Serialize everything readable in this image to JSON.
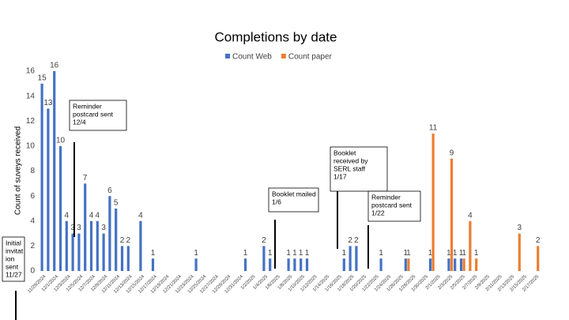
{
  "chart_data": {
    "type": "bar",
    "title": "Completions by date",
    "y_label": "Count of suveys received",
    "categories": [
      "11/29/2024",
      null,
      "12/1/2024",
      null,
      "12/3/2024",
      null,
      "12/5/2024",
      null,
      "12/7/2024",
      null,
      "12/9/2024",
      null,
      "12/11/2024",
      null,
      "12/13/2024",
      null,
      "12/15/2024",
      null,
      "12/17/2024",
      null,
      "12/19/2024",
      null,
      "12/21/2024",
      null,
      "12/23/2024",
      null,
      "12/25/2024",
      null,
      "12/27/2024",
      null,
      "12/29/2024",
      null,
      "12/31/2024",
      null,
      "1/2/2025",
      null,
      "1/4/2025",
      null,
      "1/6/2025",
      null,
      "1/8/2025",
      null,
      "1/10/2025",
      null,
      "1/12/2025",
      null,
      "1/14/2025",
      null,
      "1/16/2025",
      null,
      "1/18/2025",
      null,
      "1/20/2025",
      null,
      "1/22/2025",
      null,
      "1/24/2025",
      null,
      "1/26/2025",
      null,
      "1/28/2025",
      null,
      "1/30/2025",
      null,
      "2/1/2025",
      null,
      "2/3/2025",
      null,
      "2/5/2025",
      null,
      "2/7/2025",
      null,
      "2/9/2025",
      null,
      "2/11/2025",
      null,
      "2/13/2025",
      null,
      "2/15/2025",
      null,
      "2/17/2025"
    ],
    "series": [
      {
        "name": "Count Web",
        "color": "#4472c4",
        "values": [
          15,
          13,
          16,
          10,
          4,
          3,
          3,
          7,
          4,
          4,
          3,
          6,
          5,
          2,
          2,
          0,
          4,
          0,
          1,
          0,
          0,
          0,
          0,
          0,
          0,
          1,
          0,
          0,
          0,
          0,
          0,
          0,
          0,
          1,
          0,
          0,
          2,
          1,
          0,
          0,
          1,
          1,
          1,
          1,
          0,
          0,
          0,
          0,
          0,
          1,
          2,
          2,
          0,
          0,
          0,
          1,
          0,
          0,
          0,
          1,
          0,
          0,
          0,
          1,
          0,
          0,
          1,
          1,
          1,
          0,
          0,
          0,
          0,
          0,
          0,
          0,
          0,
          0,
          0,
          0,
          0
        ]
      },
      {
        "name": "Count paper",
        "color": "#ed7d31",
        "values": [
          0,
          0,
          0,
          0,
          0,
          0,
          0,
          0,
          0,
          0,
          0,
          0,
          0,
          0,
          0,
          0,
          0,
          0,
          0,
          0,
          0,
          0,
          0,
          0,
          0,
          0,
          0,
          0,
          0,
          0,
          0,
          0,
          0,
          0,
          0,
          0,
          0,
          0,
          0,
          0,
          0,
          0,
          0,
          0,
          0,
          0,
          0,
          0,
          0,
          0,
          0,
          0,
          0,
          0,
          0,
          0,
          0,
          0,
          0,
          1,
          0,
          0,
          0,
          11,
          0,
          0,
          9,
          0,
          1,
          4,
          1,
          0,
          0,
          0,
          0,
          0,
          0,
          3,
          0,
          0,
          2
        ]
      }
    ],
    "ylim": [
      0,
      16
    ],
    "yticks": [
      0,
      2,
      4,
      6,
      8,
      10,
      12,
      14,
      16
    ],
    "legend": "top",
    "annotations": [
      {
        "lines": [
          "Initial",
          "invitat",
          "ion",
          "sent",
          "11/27"
        ]
      },
      {
        "lines": [
          "Reminder",
          "postcard sent",
          "12/4"
        ]
      },
      {
        "lines": [
          "Booklet mailed",
          "1/6"
        ]
      },
      {
        "lines": [
          "Booklet",
          "received by",
          "SERL staff",
          "1/17"
        ]
      },
      {
        "lines": [
          "Reminder",
          "postcard sent",
          "1/22"
        ]
      }
    ]
  }
}
